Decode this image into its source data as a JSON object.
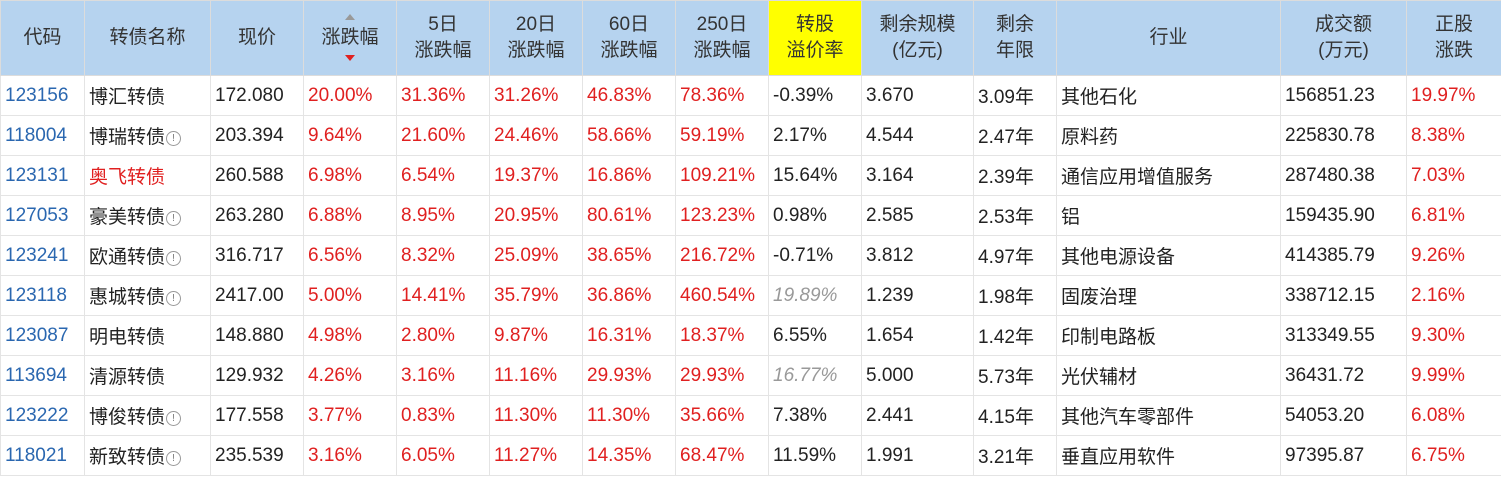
{
  "headers": {
    "code": "代码",
    "name": "转债名称",
    "price": "现价",
    "change": "涨跌幅",
    "d5_l1": "5日",
    "d5_l2": "涨跌幅",
    "d20_l1": "20日",
    "d20_l2": "涨跌幅",
    "d60_l1": "60日",
    "d60_l2": "涨跌幅",
    "d250_l1": "250日",
    "d250_l2": "涨跌幅",
    "premium_l1": "转股",
    "premium_l2": "溢价率",
    "scale_l1": "剩余规模",
    "scale_l2": "(亿元)",
    "years_l1": "剩余",
    "years_l2": "年限",
    "industry": "行业",
    "volume_l1": "成交额",
    "volume_l2": "(万元)",
    "stock_l1": "正股",
    "stock_l2": "涨跌"
  },
  "colors": {
    "header_bg": "#b6d3ef",
    "highlight_header": "#ffff00",
    "up": "#e02020",
    "link": "#2a67b0"
  },
  "rows": [
    {
      "code": "123156",
      "name": "博汇转债",
      "info": "",
      "price": "172.080",
      "change": "20.00%",
      "d5": "31.36%",
      "d20": "31.26%",
      "d60": "46.83%",
      "d250": "78.36%",
      "premium": "-0.39%",
      "scale": "3.670",
      "years": "3.09年",
      "industry": "其他石化",
      "volume": "156851.23",
      "stock_change": "19.97%"
    },
    {
      "code": "118004",
      "name": "博瑞转债",
      "info": "!",
      "price": "203.394",
      "change": "9.64%",
      "d5": "21.60%",
      "d20": "24.46%",
      "d60": "58.66%",
      "d250": "59.19%",
      "premium": "2.17%",
      "scale": "4.544",
      "years": "2.47年",
      "industry": "原料药",
      "volume": "225830.78",
      "stock_change": "8.38%"
    },
    {
      "code": "123131",
      "name": "奥飞转债",
      "info": "",
      "price": "260.588",
      "change": "6.98%",
      "d5": "6.54%",
      "d20": "19.37%",
      "d60": "16.86%",
      "d250": "109.21%",
      "premium": "15.64%",
      "scale": "3.164",
      "years": "2.39年",
      "industry": "通信应用增值服务",
      "volume": "287480.38",
      "stock_change": "7.03%"
    },
    {
      "code": "127053",
      "name": "豪美转债",
      "info": "!",
      "price": "263.280",
      "change": "6.88%",
      "d5": "8.95%",
      "d20": "20.95%",
      "d60": "80.61%",
      "d250": "123.23%",
      "premium": "0.98%",
      "scale": "2.585",
      "years": "2.53年",
      "industry": "铝",
      "volume": "159435.90",
      "stock_change": "6.81%"
    },
    {
      "code": "123241",
      "name": "欧通转债",
      "info": "!",
      "price": "316.717",
      "change": "6.56%",
      "d5": "8.32%",
      "d20": "25.09%",
      "d60": "38.65%",
      "d250": "216.72%",
      "premium": "-0.71%",
      "scale": "3.812",
      "years": "4.97年",
      "industry": "其他电源设备",
      "volume": "414385.79",
      "stock_change": "9.26%"
    },
    {
      "code": "123118",
      "name": "惠城转债",
      "info": "!",
      "price": "2417.00",
      "change": "5.00%",
      "d5": "14.41%",
      "d20": "35.79%",
      "d60": "36.86%",
      "d250": "460.54%",
      "premium": "19.89%",
      "scale": "1.239",
      "years": "1.98年",
      "industry": "固废治理",
      "volume": "338712.15",
      "stock_change": "2.16%"
    },
    {
      "code": "123087",
      "name": "明电转债",
      "info": "",
      "price": "148.880",
      "change": "4.98%",
      "d5": "2.80%",
      "d20": "9.87%",
      "d60": "16.31%",
      "d250": "18.37%",
      "premium": "6.55%",
      "scale": "1.654",
      "years": "1.42年",
      "industry": "印制电路板",
      "volume": "313349.55",
      "stock_change": "9.30%"
    },
    {
      "code": "113694",
      "name": "清源转债",
      "info": "",
      "price": "129.932",
      "change": "4.26%",
      "d5": "3.16%",
      "d20": "11.16%",
      "d60": "29.93%",
      "d250": "29.93%",
      "premium": "16.77%",
      "scale": "5.000",
      "years": "5.73年",
      "industry": "光伏辅材",
      "volume": "36431.72",
      "stock_change": "9.99%"
    },
    {
      "code": "123222",
      "name": "博俊转债",
      "info": "!",
      "price": "177.558",
      "change": "3.77%",
      "d5": "0.83%",
      "d20": "11.30%",
      "d60": "11.30%",
      "d250": "35.66%",
      "premium": "7.38%",
      "scale": "2.441",
      "years": "4.15年",
      "industry": "其他汽车零部件",
      "volume": "54053.20",
      "stock_change": "6.08%"
    },
    {
      "code": "118021",
      "name": "新致转债",
      "info": "!",
      "price": "235.539",
      "change": "3.16%",
      "d5": "6.05%",
      "d20": "11.27%",
      "d60": "14.35%",
      "d250": "68.47%",
      "premium": "11.59%",
      "scale": "1.991",
      "years": "3.21年",
      "industry": "垂直应用软件",
      "volume": "97395.87",
      "stock_change": "6.75%"
    }
  ]
}
